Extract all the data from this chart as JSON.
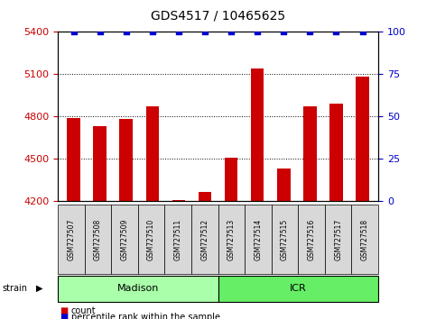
{
  "title": "GDS4517 / 10465625",
  "samples": [
    "GSM727507",
    "GSM727508",
    "GSM727509",
    "GSM727510",
    "GSM727511",
    "GSM727512",
    "GSM727513",
    "GSM727514",
    "GSM727515",
    "GSM727516",
    "GSM727517",
    "GSM727518"
  ],
  "counts": [
    4790,
    4730,
    4780,
    4870,
    4205,
    4265,
    4510,
    5140,
    4430,
    4870,
    4890,
    5080
  ],
  "percentiles": [
    100,
    100,
    100,
    100,
    100,
    100,
    100,
    100,
    100,
    100,
    100,
    100
  ],
  "bar_color": "#cc0000",
  "dot_color": "#0000cc",
  "ylim_left": [
    4200,
    5400
  ],
  "ylim_right": [
    0,
    100
  ],
  "yticks_left": [
    4200,
    4500,
    4800,
    5100,
    5400
  ],
  "yticks_right": [
    0,
    25,
    50,
    75,
    100
  ],
  "groups": [
    {
      "label": "Madison",
      "start": 0,
      "end": 5,
      "color": "#aaffaa"
    },
    {
      "label": "ICR",
      "start": 6,
      "end": 11,
      "color": "#66ee66"
    }
  ],
  "group_row_label": "strain",
  "legend_count_label": "count",
  "legend_pct_label": "percentile rank within the sample",
  "tick_label_color_left": "#cc0000",
  "tick_label_color_right": "#0000cc",
  "bar_width": 0.5,
  "sample_box_color": "#d8d8d8"
}
